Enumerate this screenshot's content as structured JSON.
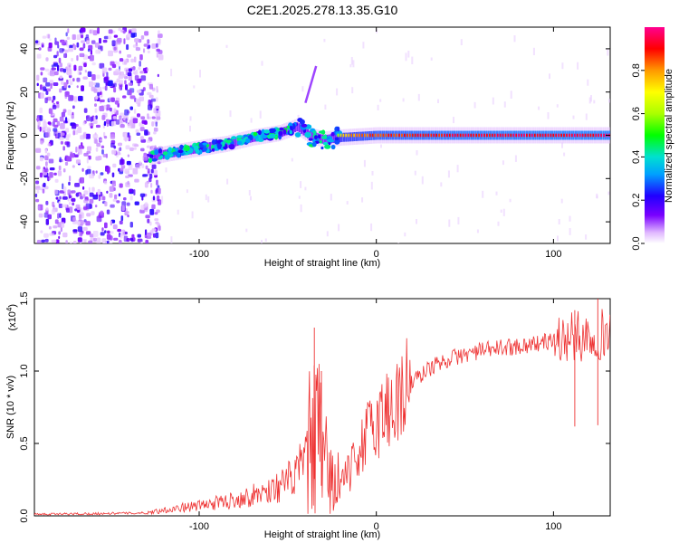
{
  "title": "C2E1.2025.278.13.35.G10",
  "chart_data": [
    {
      "type": "heatmap",
      "name": "spectrogram",
      "xlabel": "Height of straight line (km)",
      "ylabel": "Frequency (Hz)",
      "xlim": [
        -193,
        132
      ],
      "ylim": [
        -50,
        50
      ],
      "xticks": [
        -100,
        0,
        100
      ],
      "xtick_labels": [
        "-100",
        "0",
        "100"
      ],
      "yticks": [
        -40,
        -20,
        0,
        20,
        40
      ],
      "ytick_labels": [
        "-40",
        "-20",
        "0",
        "20",
        "40"
      ],
      "noise_region_x": [
        -193,
        -123
      ],
      "trace": [
        {
          "x": -128,
          "f": -10,
          "amp": 0.42
        },
        {
          "x": -115,
          "f": -8,
          "amp": 0.45
        },
        {
          "x": -100,
          "f": -6,
          "amp": 0.42
        },
        {
          "x": -85,
          "f": -4,
          "amp": 0.45
        },
        {
          "x": -70,
          "f": -1,
          "amp": 0.42
        },
        {
          "x": -55,
          "f": 1,
          "amp": 0.4
        },
        {
          "x": -45,
          "f": 4,
          "amp": 0.38
        },
        {
          "x": -38,
          "f": 0,
          "amp": 0.2
        },
        {
          "x": -30,
          "f": -2,
          "amp": 0.22
        },
        {
          "x": -20,
          "f": -1,
          "amp": 0.8
        },
        {
          "x": 0,
          "f": 0,
          "amp": 0.9
        },
        {
          "x": 40,
          "f": 0,
          "amp": 0.95
        },
        {
          "x": 80,
          "f": 0,
          "amp": 0.97
        },
        {
          "x": 132,
          "f": 0,
          "amp": 0.98
        }
      ],
      "colorbar": {
        "label": "Normalized spectral amplitude",
        "range": [
          0,
          1
        ],
        "ticks": [
          0.0,
          0.2,
          0.4,
          0.6,
          0.8
        ],
        "tick_labels": [
          "0.0",
          "0.2",
          "0.4",
          "0.6",
          "0.8"
        ]
      }
    },
    {
      "type": "line",
      "name": "snr",
      "xlabel": "Height of straight line (km)",
      "ylabel": "SNR (10 * v/v)",
      "y_multiplier": "(x10",
      "y_multiplier_exp": "4",
      "y_multiplier_close": ")",
      "xlim": [
        -193,
        132
      ],
      "ylim": [
        0,
        1.5
      ],
      "xticks": [
        -100,
        0,
        100
      ],
      "xtick_labels": [
        "-100",
        "0",
        "100"
      ],
      "yticks": [
        0.0,
        0.5,
        1.0,
        1.5
      ],
      "ytick_labels": [
        "0.0",
        "0.5",
        "1.0",
        "1.5"
      ],
      "color": "#ee3333",
      "envelope": [
        {
          "x": -193,
          "y": 0.01
        },
        {
          "x": -130,
          "y": 0.02
        },
        {
          "x": -115,
          "y": 0.05
        },
        {
          "x": -100,
          "y": 0.07
        },
        {
          "x": -85,
          "y": 0.1
        },
        {
          "x": -70,
          "y": 0.14
        },
        {
          "x": -55,
          "y": 0.2
        },
        {
          "x": -45,
          "y": 0.28
        },
        {
          "x": -38,
          "y": 0.45
        },
        {
          "x": -33,
          "y": 0.55
        },
        {
          "x": -30,
          "y": 0.35
        },
        {
          "x": -22,
          "y": 0.22
        },
        {
          "x": -15,
          "y": 0.3
        },
        {
          "x": -8,
          "y": 0.5
        },
        {
          "x": 0,
          "y": 0.65
        },
        {
          "x": 10,
          "y": 0.78
        },
        {
          "x": 20,
          "y": 0.92
        },
        {
          "x": 30,
          "y": 1.02
        },
        {
          "x": 40,
          "y": 1.08
        },
        {
          "x": 55,
          "y": 1.13
        },
        {
          "x": 70,
          "y": 1.16
        },
        {
          "x": 85,
          "y": 1.18
        },
        {
          "x": 100,
          "y": 1.21
        },
        {
          "x": 115,
          "y": 1.24
        },
        {
          "x": 132,
          "y": 1.26
        }
      ],
      "spikes": [
        {
          "x": -35,
          "y": 1.3
        },
        {
          "x": -31,
          "y": 1.0
        },
        {
          "x": 112,
          "y": 1.42
        },
        {
          "x": 125,
          "y": 1.5
        }
      ]
    }
  ]
}
